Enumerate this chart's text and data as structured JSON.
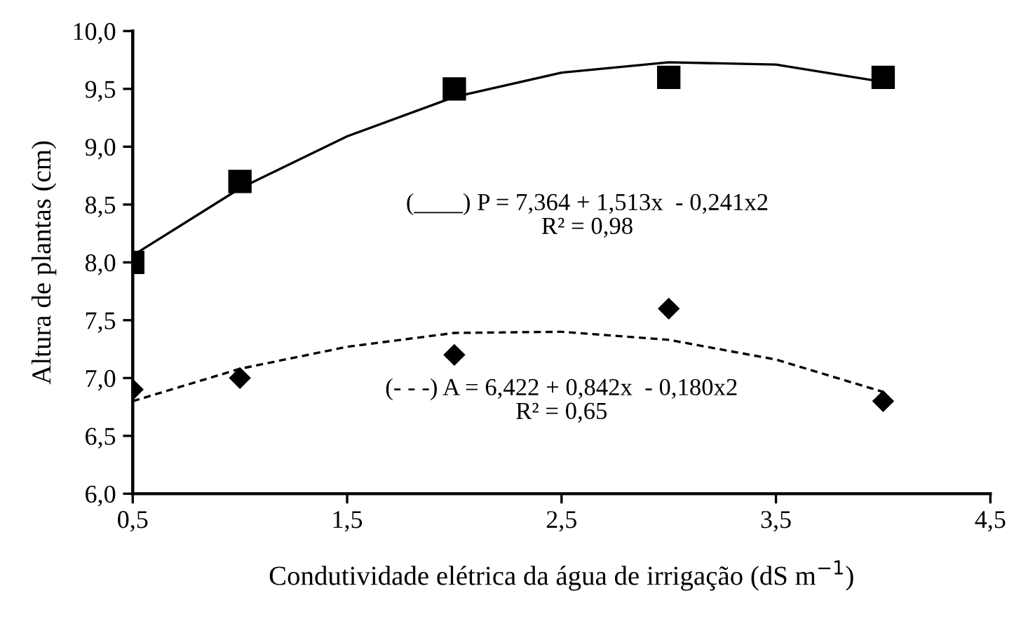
{
  "chart_data": {
    "type": "scatter",
    "xlabel": "Condutividade elétrica da água de irrigação (dS m$^{−1}$)",
    "ylabel": "Altura de plantas (cm)",
    "xlim": [
      0.5,
      4.5
    ],
    "ylim": [
      6.0,
      10.0
    ],
    "xticks": [
      {
        "value": 0.5,
        "label": "0,5"
      },
      {
        "value": 1.5,
        "label": "1,5"
      },
      {
        "value": 2.5,
        "label": "2,5"
      },
      {
        "value": 3.5,
        "label": "3,5"
      },
      {
        "value": 4.5,
        "label": "4,5"
      }
    ],
    "yticks": [
      {
        "value": 6.0,
        "label": "6,0"
      },
      {
        "value": 6.5,
        "label": "6,5"
      },
      {
        "value": 7.0,
        "label": "7,0"
      },
      {
        "value": 7.5,
        "label": "7,5"
      },
      {
        "value": 8.0,
        "label": "8,0"
      },
      {
        "value": 8.5,
        "label": "8,5"
      },
      {
        "value": 9.0,
        "label": "9,0"
      },
      {
        "value": 9.5,
        "label": "9,5"
      },
      {
        "value": 10.0,
        "label": "10,0"
      }
    ],
    "grid": false,
    "legend": false,
    "series": [
      {
        "marker": "square",
        "color": "#000000",
        "x": [
          0.5,
          1,
          2,
          3,
          4
        ],
        "values": [
          8.0,
          8.7,
          9.5,
          9.6,
          9.6
        ]
      },
      {
        "marker": "diamond",
        "color": "#000000",
        "x": [
          0.5,
          1,
          2,
          3,
          4
        ],
        "values": [
          6.9,
          7.0,
          7.2,
          7.6,
          6.8
        ]
      },
      {
        "type": "line",
        "marker": "none",
        "line_style": "solid",
        "color": "#000000",
        "x": [
          0.5,
          1,
          1.5,
          2,
          2.5,
          3,
          3.5,
          4
        ],
        "values": [
          8.06,
          8.64,
          9.09,
          9.43,
          9.64,
          9.73,
          9.71,
          9.56
        ]
      },
      {
        "type": "line",
        "marker": "none",
        "line_style": "dashed",
        "color": "#000000",
        "x": [
          0.5,
          1,
          1.5,
          2,
          2.5,
          3,
          3.5,
          4
        ],
        "values": [
          6.8,
          7.08,
          7.27,
          7.39,
          7.4,
          7.33,
          7.16,
          6.88
        ]
      }
    ],
    "annotations": [
      "(____) P = 7,364 + 1,513x  - 0,241x2\nR² = 0,98",
      "(- - -) A = 6,422 + 0,842x  - 0,180x2\nR² = 0,65"
    ]
  }
}
